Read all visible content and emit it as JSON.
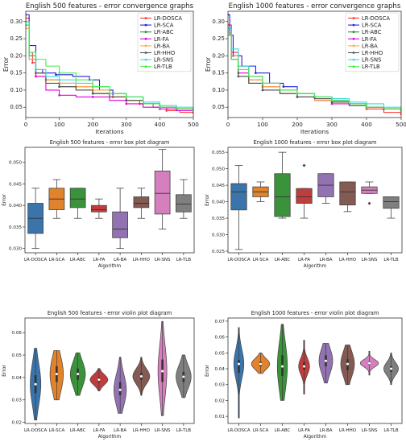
{
  "chart_data": [
    {
      "type": "line",
      "title": "English 500 features -  error convergence graphs",
      "xlabel": "Iterations",
      "ylabel": "Error",
      "xlim": [
        0,
        500
      ],
      "ylim": [
        0.02,
        0.33
      ],
      "xticks": [
        0,
        100,
        200,
        300,
        400,
        500
      ],
      "yticks": [
        0.05,
        0.1,
        0.15,
        0.2,
        0.25,
        0.3
      ],
      "ytick_labels": [
        "0.05",
        "0.10",
        "0.15",
        "0.20",
        "0.25",
        "0.30"
      ],
      "legend_position": "top-right",
      "series": [
        {
          "name": "LR-DOSCA",
          "color": "#ff3333",
          "marker": "o",
          "x": [
            0,
            10,
            20,
            30,
            60,
            100,
            150,
            200,
            260,
            300,
            340,
            380,
            420,
            460,
            500
          ],
          "y": [
            0.31,
            0.21,
            0.18,
            0.15,
            0.13,
            0.12,
            0.11,
            0.09,
            0.08,
            0.07,
            0.06,
            0.05,
            0.04,
            0.035,
            0.034
          ]
        },
        {
          "name": "LR-SCA",
          "color": "#2222dd",
          "marker": "*",
          "x": [
            0,
            10,
            30,
            50,
            90,
            140,
            190,
            220,
            260,
            300,
            350,
            400,
            450,
            500
          ],
          "y": [
            0.32,
            0.23,
            0.16,
            0.15,
            0.145,
            0.14,
            0.13,
            0.1,
            0.09,
            0.08,
            0.06,
            0.05,
            0.045,
            0.04
          ]
        },
        {
          "name": "LR-ABC",
          "color": "#229922",
          "marker": "o",
          "x": [
            0,
            10,
            30,
            60,
            100,
            150,
            200,
            250,
            300,
            350,
            400,
            450,
            500
          ],
          "y": [
            0.3,
            0.19,
            0.14,
            0.13,
            0.11,
            0.1,
            0.09,
            0.08,
            0.07,
            0.06,
            0.05,
            0.045,
            0.04
          ]
        },
        {
          "name": "LR-FA",
          "color": "#e000e0",
          "marker": "o",
          "x": [
            0,
            10,
            30,
            60,
            100,
            150,
            200,
            250,
            300,
            350,
            400,
            450,
            500
          ],
          "y": [
            0.29,
            0.2,
            0.14,
            0.1,
            0.085,
            0.08,
            0.08,
            0.07,
            0.06,
            0.05,
            0.045,
            0.04,
            0.04
          ]
        },
        {
          "name": "LR-BA",
          "color": "#ffaa44",
          "marker": "o",
          "x": [
            0,
            10,
            30,
            60,
            100,
            150,
            200,
            250,
            300,
            350,
            400,
            450,
            500
          ],
          "y": [
            0.28,
            0.19,
            0.16,
            0.13,
            0.12,
            0.11,
            0.1,
            0.08,
            0.07,
            0.06,
            0.05,
            0.045,
            0.04
          ]
        },
        {
          "name": "LR-HHO",
          "color": "#555555",
          "marker": "o",
          "x": [
            0,
            10,
            30,
            60,
            100,
            150,
            200,
            250,
            300,
            350,
            400,
            450,
            500
          ],
          "y": [
            0.29,
            0.2,
            0.15,
            0.12,
            0.11,
            0.1,
            0.09,
            0.08,
            0.07,
            0.06,
            0.05,
            0.045,
            0.04
          ]
        },
        {
          "name": "LR-SNS",
          "color": "#33dddd",
          "marker": "o",
          "x": [
            0,
            10,
            30,
            60,
            100,
            150,
            200,
            250,
            300,
            350,
            400,
            450,
            500
          ],
          "y": [
            0.3,
            0.2,
            0.16,
            0.14,
            0.13,
            0.12,
            0.11,
            0.09,
            0.08,
            0.065,
            0.055,
            0.05,
            0.045
          ]
        },
        {
          "name": "LR-TLB",
          "color": "#44ee44",
          "marker": "o",
          "x": [
            0,
            10,
            30,
            60,
            100,
            150,
            200,
            250,
            300,
            350,
            400,
            450,
            500
          ],
          "y": [
            0.29,
            0.21,
            0.19,
            0.17,
            0.15,
            0.13,
            0.11,
            0.09,
            0.08,
            0.06,
            0.05,
            0.045,
            0.04
          ]
        }
      ]
    },
    {
      "type": "line",
      "title": "English 1000 features -  error convergence graphs",
      "xlabel": "Iterations",
      "ylabel": "Error",
      "xlim": [
        0,
        500
      ],
      "ylim": [
        0.02,
        0.33
      ],
      "xticks": [
        0,
        100,
        200,
        300,
        400,
        500
      ],
      "yticks": [
        0.05,
        0.1,
        0.15,
        0.2,
        0.25,
        0.3
      ],
      "ytick_labels": [
        "0.05",
        "0.10",
        "0.15",
        "0.20",
        "0.25",
        "0.30"
      ],
      "legend_position": "top-right",
      "series": [
        {
          "name": "LR-DOSCA",
          "color": "#ff3333",
          "marker": "o",
          "x": [
            0,
            10,
            30,
            60,
            100,
            150,
            200,
            250,
            300,
            350,
            400,
            450,
            500
          ],
          "y": [
            0.29,
            0.21,
            0.17,
            0.14,
            0.12,
            0.1,
            0.09,
            0.075,
            0.07,
            0.06,
            0.045,
            0.035,
            0.03
          ]
        },
        {
          "name": "LR-SCA",
          "color": "#2222dd",
          "marker": "*",
          "x": [
            0,
            5,
            15,
            40,
            80,
            120,
            160,
            200,
            250,
            300,
            350,
            400,
            450,
            500
          ],
          "y": [
            0.32,
            0.26,
            0.2,
            0.17,
            0.15,
            0.12,
            0.11,
            0.09,
            0.08,
            0.07,
            0.06,
            0.05,
            0.045,
            0.04
          ]
        },
        {
          "name": "LR-ABC",
          "color": "#229922",
          "marker": "o",
          "x": [
            0,
            10,
            30,
            60,
            100,
            150,
            200,
            250,
            300,
            350,
            400,
            450,
            500
          ],
          "y": [
            0.27,
            0.19,
            0.14,
            0.12,
            0.1,
            0.09,
            0.08,
            0.07,
            0.065,
            0.055,
            0.05,
            0.045,
            0.04
          ]
        },
        {
          "name": "LR-FA",
          "color": "#e000e0",
          "marker": "o",
          "x": [
            0,
            10,
            30,
            60,
            100,
            150,
            200,
            250,
            300,
            350,
            400,
            450,
            500
          ],
          "y": [
            0.28,
            0.2,
            0.15,
            0.13,
            0.11,
            0.09,
            0.08,
            0.07,
            0.06,
            0.055,
            0.05,
            0.045,
            0.04
          ]
        },
        {
          "name": "LR-BA",
          "color": "#ffaa44",
          "marker": "o",
          "x": [
            0,
            10,
            30,
            60,
            100,
            150,
            200,
            250,
            300,
            350,
            400,
            450,
            500
          ],
          "y": [
            0.27,
            0.2,
            0.16,
            0.13,
            0.11,
            0.09,
            0.08,
            0.07,
            0.065,
            0.06,
            0.05,
            0.045,
            0.04
          ]
        },
        {
          "name": "LR-HHO",
          "color": "#555555",
          "marker": "o",
          "x": [
            0,
            10,
            30,
            60,
            100,
            150,
            200,
            250,
            300,
            350,
            400,
            450,
            500
          ],
          "y": [
            0.28,
            0.19,
            0.14,
            0.12,
            0.1,
            0.09,
            0.08,
            0.075,
            0.065,
            0.055,
            0.05,
            0.045,
            0.04
          ]
        },
        {
          "name": "LR-SNS",
          "color": "#33dddd",
          "marker": "o",
          "x": [
            0,
            10,
            30,
            60,
            100,
            150,
            200,
            250,
            300,
            350,
            400,
            450,
            500
          ],
          "y": [
            0.28,
            0.22,
            0.17,
            0.14,
            0.12,
            0.1,
            0.09,
            0.08,
            0.075,
            0.065,
            0.06,
            0.05,
            0.045
          ]
        },
        {
          "name": "LR-TLB",
          "color": "#44ee44",
          "marker": "o",
          "x": [
            0,
            10,
            30,
            60,
            100,
            150,
            200,
            250,
            300,
            350,
            400,
            450,
            500
          ],
          "y": [
            0.26,
            0.19,
            0.16,
            0.14,
            0.12,
            0.1,
            0.09,
            0.08,
            0.07,
            0.06,
            0.05,
            0.045,
            0.04
          ]
        }
      ]
    },
    {
      "type": "box",
      "title": "English 500 features - error box plot diagram",
      "xlabel": "Algorithm",
      "ylabel": "Error",
      "ylim": [
        0.029,
        0.0535
      ],
      "yticks": [
        0.03,
        0.035,
        0.04,
        0.045,
        0.05
      ],
      "ytick_labels": [
        "0.030",
        "0.035",
        "0.040",
        "0.045",
        "0.050"
      ],
      "categories": [
        "LR-DOSCA",
        "LR-SCA",
        "LR-ABC",
        "LR-FA",
        "LR-BA",
        "LR-HHO",
        "LR-SNS",
        "LR-TLB"
      ],
      "colors": [
        "#3a74ab",
        "#e1822c",
        "#3a923a",
        "#c03d3e",
        "#9372b2",
        "#845b53",
        "#d57fbe",
        "#7f7f7f"
      ],
      "boxes": [
        {
          "whislo": 0.03,
          "q1": 0.0335,
          "med": 0.037,
          "q3": 0.0405,
          "whishi": 0.044
        },
        {
          "whislo": 0.037,
          "q1": 0.039,
          "med": 0.0415,
          "q3": 0.044,
          "whishi": 0.046
        },
        {
          "whislo": 0.037,
          "q1": 0.0395,
          "med": 0.0415,
          "q3": 0.044,
          "whishi": 0.044
        },
        {
          "whislo": 0.037,
          "q1": 0.0385,
          "med": 0.039,
          "q3": 0.04,
          "whishi": 0.0415
        },
        {
          "whislo": 0.03,
          "q1": 0.0325,
          "med": 0.0345,
          "q3": 0.0385,
          "whishi": 0.044
        },
        {
          "whislo": 0.037,
          "q1": 0.0395,
          "med": 0.0405,
          "q3": 0.042,
          "whishi": 0.044
        },
        {
          "whislo": 0.0345,
          "q1": 0.038,
          "med": 0.0428,
          "q3": 0.048,
          "whishi": 0.053
        },
        {
          "whislo": 0.037,
          "q1": 0.0385,
          "med": 0.0403,
          "q3": 0.0425,
          "whishi": 0.046
        }
      ]
    },
    {
      "type": "box",
      "title": "English 1000 features - error box plot diagram",
      "xlabel": "Algorithm",
      "ylabel": "Error",
      "ylim": [
        0.0245,
        0.0565
      ],
      "yticks": [
        0.025,
        0.03,
        0.035,
        0.04,
        0.045,
        0.05,
        0.055
      ],
      "ytick_labels": [
        "0.025",
        "0.030",
        "0.035",
        "0.040",
        "0.045",
        "0.050",
        "0.055"
      ],
      "categories": [
        "LR-DOSCA",
        "LR-SCA",
        "LR-ABC",
        "LR-FA",
        "LR-BA",
        "LR-HHO",
        "LR-SNS",
        "LR-TLB"
      ],
      "colors": [
        "#3a74ab",
        "#e1822c",
        "#3a923a",
        "#c03d3e",
        "#9372b2",
        "#845b53",
        "#d57fbe",
        "#7f7f7f"
      ],
      "boxes": [
        {
          "whislo": 0.0255,
          "q1": 0.0375,
          "med": 0.043,
          "q3": 0.0455,
          "whishi": 0.051,
          "fliers": []
        },
        {
          "whislo": 0.04,
          "q1": 0.0415,
          "med": 0.043,
          "q3": 0.0445,
          "whishi": 0.046,
          "fliers": []
        },
        {
          "whislo": 0.035,
          "q1": 0.0355,
          "med": 0.0415,
          "q3": 0.0485,
          "whishi": 0.055,
          "fliers": []
        },
        {
          "whislo": 0.035,
          "q1": 0.0395,
          "med": 0.0415,
          "q3": 0.044,
          "whishi": 0.044,
          "fliers": [
            0.051
          ]
        },
        {
          "whislo": 0.0395,
          "q1": 0.0415,
          "med": 0.045,
          "q3": 0.0485,
          "whishi": 0.0485,
          "fliers": []
        },
        {
          "whislo": 0.037,
          "q1": 0.039,
          "med": 0.043,
          "q3": 0.046,
          "whishi": 0.046,
          "fliers": []
        },
        {
          "whislo": 0.0425,
          "q1": 0.0425,
          "med": 0.0435,
          "q3": 0.0445,
          "whishi": 0.046,
          "fliers": [
            0.0395
          ]
        },
        {
          "whislo": 0.035,
          "q1": 0.038,
          "med": 0.04,
          "q3": 0.0415,
          "whishi": 0.0415,
          "fliers": []
        }
      ]
    },
    {
      "type": "violin",
      "title": "English 500 features - error violin plot diagram",
      "xlabel": "Algorithm",
      "ylabel": "Error",
      "ylim": [
        0.0195,
        0.0665
      ],
      "yticks": [
        0.02,
        0.03,
        0.04,
        0.05,
        0.06
      ],
      "ytick_labels": [
        "0.02",
        "0.03",
        "0.04",
        "0.05",
        "0.06"
      ],
      "categories": [
        "LR-DOSCA",
        "LR-SCA",
        "LR-ABC",
        "LR-FA",
        "LR-BA",
        "LR-HHO",
        "LR-SNS",
        "LR-TLB"
      ],
      "colors": [
        "#3a74ab",
        "#e1822c",
        "#3a923a",
        "#c03d3e",
        "#9372b2",
        "#845b53",
        "#d57fbe",
        "#7f7f7f"
      ],
      "violins": [
        {
          "min": 0.021,
          "max": 0.053,
          "med": 0.037,
          "q1": 0.033,
          "q3": 0.041,
          "width": 0.6
        },
        {
          "min": 0.03,
          "max": 0.052,
          "med": 0.0415,
          "q1": 0.038,
          "q3": 0.045,
          "width": 0.75
        },
        {
          "min": 0.032,
          "max": 0.051,
          "med": 0.0415,
          "q1": 0.039,
          "q3": 0.044,
          "width": 0.85
        },
        {
          "min": 0.034,
          "max": 0.044,
          "med": 0.039,
          "q1": 0.038,
          "q3": 0.04,
          "width": 1.0
        },
        {
          "min": 0.024,
          "max": 0.049,
          "med": 0.0345,
          "q1": 0.032,
          "q3": 0.038,
          "width": 0.7
        },
        {
          "min": 0.032,
          "max": 0.049,
          "med": 0.0405,
          "q1": 0.039,
          "q3": 0.042,
          "width": 0.95
        },
        {
          "min": 0.023,
          "max": 0.065,
          "med": 0.0428,
          "q1": 0.038,
          "q3": 0.048,
          "width": 0.5
        },
        {
          "min": 0.031,
          "max": 0.05,
          "med": 0.0403,
          "q1": 0.038,
          "q3": 0.0425,
          "width": 0.85
        }
      ]
    },
    {
      "type": "violin",
      "title": "English 1000 features - error violin plot diagram",
      "xlabel": "Algorithm",
      "ylabel": "Error",
      "ylim": [
        0.0055,
        0.072
      ],
      "yticks": [
        0.01,
        0.02,
        0.03,
        0.04,
        0.05,
        0.06,
        0.07
      ],
      "ytick_labels": [
        "0.01",
        "0.02",
        "0.03",
        "0.04",
        "0.05",
        "0.06",
        "0.07"
      ],
      "categories": [
        "LR-DOSCA",
        "LR-SCA",
        "LR-ABC",
        "LR-FA",
        "LR-BA",
        "LR-HHO",
        "LR-SNS",
        "LR-TLB"
      ],
      "colors": [
        "#3a74ab",
        "#e1822c",
        "#3a923a",
        "#c03d3e",
        "#9372b2",
        "#845b53",
        "#d57fbe",
        "#7f7f7f"
      ],
      "violins": [
        {
          "min": 0.009,
          "max": 0.066,
          "med": 0.043,
          "q1": 0.0375,
          "q3": 0.0455,
          "width": 0.55
        },
        {
          "min": 0.037,
          "max": 0.05,
          "med": 0.043,
          "q1": 0.0415,
          "q3": 0.0445,
          "width": 1.0
        },
        {
          "min": 0.02,
          "max": 0.068,
          "med": 0.0415,
          "q1": 0.0355,
          "q3": 0.0485,
          "width": 0.55
        },
        {
          "min": 0.024,
          "max": 0.058,
          "med": 0.0415,
          "q1": 0.0395,
          "q3": 0.044,
          "width": 0.6
        },
        {
          "min": 0.031,
          "max": 0.056,
          "med": 0.045,
          "q1": 0.0415,
          "q3": 0.0485,
          "width": 0.75
        },
        {
          "min": 0.03,
          "max": 0.055,
          "med": 0.043,
          "q1": 0.039,
          "q3": 0.046,
          "width": 0.75
        },
        {
          "min": 0.036,
          "max": 0.051,
          "med": 0.0435,
          "q1": 0.0425,
          "q3": 0.0445,
          "width": 1.0
        },
        {
          "min": 0.03,
          "max": 0.05,
          "med": 0.04,
          "q1": 0.038,
          "q3": 0.0415,
          "width": 0.8
        }
      ]
    }
  ]
}
